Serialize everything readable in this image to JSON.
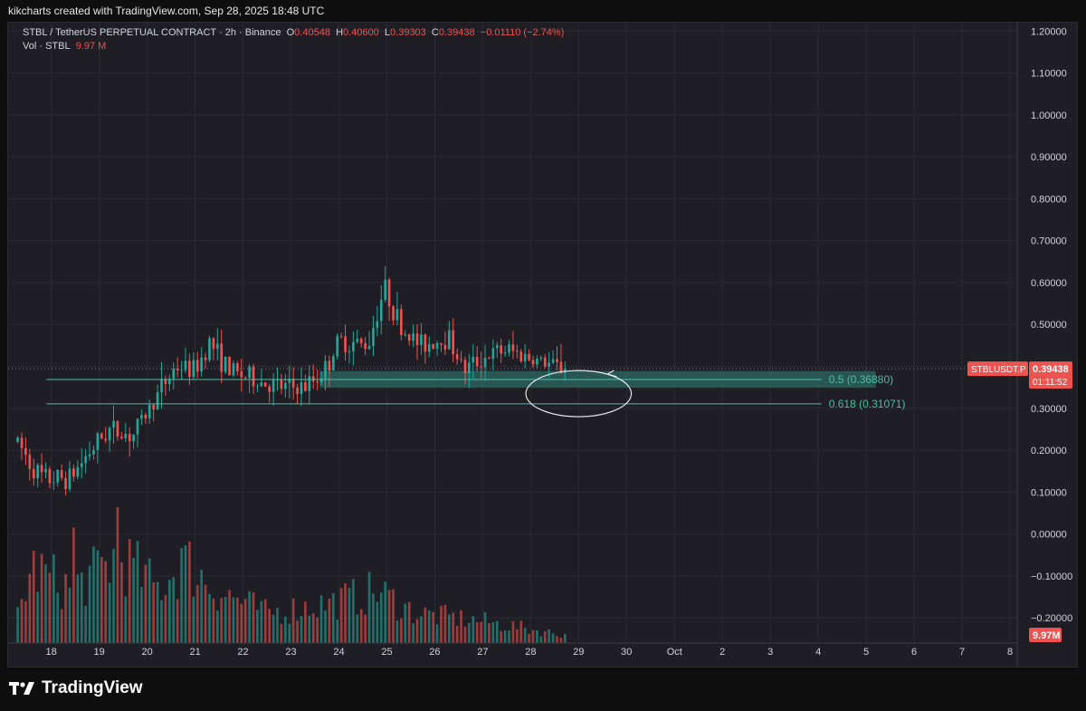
{
  "header": {
    "caption": "kikcharts created with TradingView.com, Sep 28, 2025 18:48 UTC"
  },
  "legend": {
    "symbol": "STBL / TetherUS PERPETUAL CONTRACT · 2h · Binance",
    "o_label": "O",
    "o": "0.40548",
    "h_label": "H",
    "h": "0.40600",
    "l_label": "L",
    "l": "0.39303",
    "c_label": "C",
    "c": "0.39438",
    "change": "−0.01110 (−2.74%)",
    "vol_label": "Vol · STBL",
    "vol": "9.97 M"
  },
  "price_tag": {
    "symbol": "STBLUSDT.P",
    "price": "0.39438",
    "countdown": "01:11:52"
  },
  "volume_tag": "9.97M",
  "footer": {
    "brand": "TradingView"
  },
  "colors": {
    "up": "#26a69a",
    "down": "#ef5350",
    "background": "#1e1e24",
    "grid": "#2b2b33",
    "fib_line": "#4dbfa8",
    "fib_zone": "#2c6b63"
  },
  "chart_data": {
    "type": "candlestick",
    "symbol": "STBLUSDT.P",
    "interval": "2h",
    "y_axis": {
      "ticks": [
        "1.20000",
        "1.10000",
        "1.00000",
        "0.90000",
        "0.80000",
        "0.70000",
        "0.60000",
        "0.50000",
        "0.40000",
        "0.30000",
        "0.20000",
        "0.10000",
        "0.00000",
        "−0.10000",
        "−0.20000"
      ],
      "tick_values": [
        1.2,
        1.1,
        1.0,
        0.9,
        0.8,
        0.7,
        0.6,
        0.5,
        0.4,
        0.3,
        0.2,
        0.1,
        0.0,
        -0.1,
        -0.2
      ],
      "ylim": [
        -0.26,
        1.22
      ]
    },
    "x_axis": {
      "labels": [
        "18",
        "19",
        "20",
        "21",
        "22",
        "23",
        "24",
        "25",
        "26",
        "27",
        "28",
        "29",
        "30",
        "Oct",
        "2",
        "3",
        "4",
        "5",
        "6",
        "7",
        "8"
      ],
      "label_days": [
        18,
        19,
        20,
        21,
        22,
        23,
        24,
        25,
        26,
        27,
        28,
        29,
        30,
        31,
        32,
        33,
        34,
        35,
        36,
        37,
        38
      ],
      "xlim": [
        17.1,
        38.15
      ]
    },
    "last_price": 0.39438,
    "fib_levels": [
      {
        "label": "0.5 (0.36880)",
        "value": 0.3688
      },
      {
        "label": "0.618 (0.31071)",
        "value": 0.31071
      }
    ],
    "zone": {
      "top": 0.389,
      "bottom": 0.349,
      "start_day": 23.6,
      "end_day": 35.2
    },
    "fib_start_day": 17.9,
    "ellipse": {
      "center_day": 29.0,
      "center_price": 0.335,
      "width_days": 2.2,
      "height_price": 0.11
    },
    "anchors": [
      {
        "day": 17.3,
        "price": 0.22
      },
      {
        "day": 17.6,
        "price": 0.16
      },
      {
        "day": 17.85,
        "price": 0.13
      },
      {
        "day": 18.4,
        "price": 0.135
      },
      {
        "day": 18.75,
        "price": 0.19
      },
      {
        "day": 19.2,
        "price": 0.25
      },
      {
        "day": 19.7,
        "price": 0.235
      },
      {
        "day": 20.2,
        "price": 0.33
      },
      {
        "day": 20.6,
        "price": 0.4
      },
      {
        "day": 21.0,
        "price": 0.39
      },
      {
        "day": 21.3,
        "price": 0.46
      },
      {
        "day": 21.7,
        "price": 0.39
      },
      {
        "day": 22.2,
        "price": 0.37
      },
      {
        "day": 22.7,
        "price": 0.35
      },
      {
        "day": 23.3,
        "price": 0.35
      },
      {
        "day": 23.7,
        "price": 0.39
      },
      {
        "day": 24.0,
        "price": 0.46
      },
      {
        "day": 24.6,
        "price": 0.45
      },
      {
        "day": 24.95,
        "price": 0.59
      },
      {
        "day": 25.3,
        "price": 0.49
      },
      {
        "day": 25.7,
        "price": 0.45
      },
      {
        "day": 26.3,
        "price": 0.47
      },
      {
        "day": 26.6,
        "price": 0.39
      },
      {
        "day": 27.0,
        "price": 0.42
      },
      {
        "day": 27.5,
        "price": 0.44
      },
      {
        "day": 28.0,
        "price": 0.42
      },
      {
        "day": 28.5,
        "price": 0.4
      },
      {
        "day": 28.75,
        "price": 0.394
      }
    ],
    "volume_anchors": [
      {
        "day": 17.3,
        "v": 0.22
      },
      {
        "day": 17.6,
        "v": 0.55
      },
      {
        "day": 18.4,
        "v": 0.4
      },
      {
        "day": 18.9,
        "v": 0.5
      },
      {
        "day": 19.4,
        "v": 0.65
      },
      {
        "day": 20.2,
        "v": 0.4
      },
      {
        "day": 20.8,
        "v": 0.6
      },
      {
        "day": 21.4,
        "v": 0.4
      },
      {
        "day": 22.5,
        "v": 0.22
      },
      {
        "day": 23.9,
        "v": 0.3
      },
      {
        "day": 24.8,
        "v": 0.38
      },
      {
        "day": 25.6,
        "v": 0.22
      },
      {
        "day": 27.0,
        "v": 0.16
      },
      {
        "day": 28.7,
        "v": 0.06
      }
    ],
    "volume_spikes": [
      {
        "day": 19.35,
        "v": 1.0
      },
      {
        "day": 18.5,
        "v": 0.85
      },
      {
        "day": 20.7,
        "v": 0.7
      },
      {
        "day": 20.8,
        "v": 0.72
      }
    ],
    "last_volume": "9.97M"
  }
}
